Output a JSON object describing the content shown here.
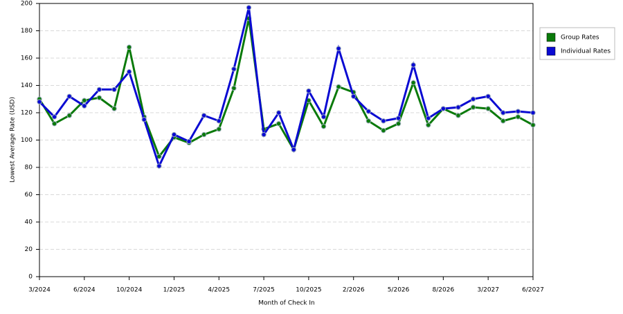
{
  "chart_data": {
    "type": "line",
    "xlabel": "Month of Check In",
    "ylabel": "Lowest Average Rate (USD)",
    "categories": [
      "3/2024",
      null,
      null,
      "6/2024",
      null,
      null,
      "10/2024",
      null,
      null,
      "1/2025",
      null,
      null,
      "4/2025",
      null,
      null,
      "7/2025",
      null,
      null,
      "10/2025",
      null,
      null,
      "2/2026",
      null,
      null,
      "5/2026",
      null,
      null,
      "8/2026",
      null,
      null,
      "3/2027",
      null,
      null,
      "6/2027"
    ],
    "series": [
      {
        "name": "Group Rates",
        "color": "#0a7a0a",
        "values": [
          130,
          112,
          118,
          129,
          131,
          123,
          168,
          117,
          88,
          102,
          98,
          104,
          108,
          138,
          189,
          108,
          112,
          93,
          129,
          110,
          139,
          135,
          114,
          107,
          112,
          142,
          111,
          123,
          118,
          124,
          123,
          114,
          117,
          111
        ]
      },
      {
        "name": "Individual Rates",
        "color": "#0a0ad2",
        "values": [
          128,
          117,
          132,
          125,
          137,
          137,
          150,
          115,
          81,
          104,
          99,
          118,
          114,
          152,
          197,
          104,
          120,
          93,
          136,
          117,
          167,
          132,
          121,
          114,
          116,
          155,
          116,
          123,
          124,
          130,
          132,
          120,
          121,
          120
        ]
      }
    ],
    "ylim": [
      0,
      200
    ],
    "yticks": [
      0,
      20,
      40,
      60,
      80,
      100,
      120,
      140,
      160,
      180,
      200
    ],
    "grid": true,
    "legend": "top-right"
  }
}
